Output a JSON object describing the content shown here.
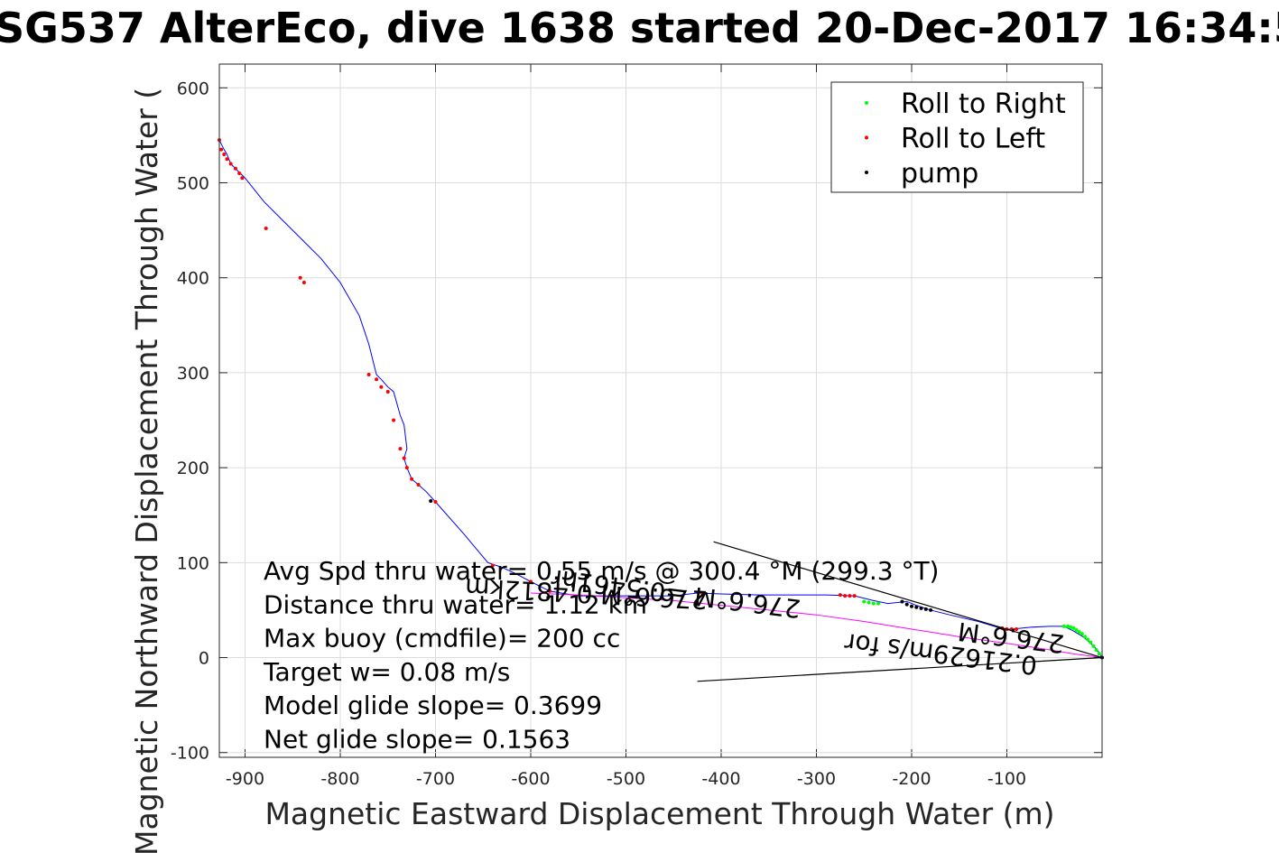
{
  "chart_data": {
    "type": "scatter",
    "title": "SG537 AlterEco, dive 1638 started 20-Dec-2017 16:34:5",
    "xlabel": "Magnetic Eastward Displacement Through Water (m)",
    "ylabel": "Magnetic Northward Displacement Through Water (",
    "xlim": [
      -927,
      0
    ],
    "ylim": [
      -105,
      625
    ],
    "xticks": [
      -900,
      -800,
      -700,
      -600,
      -500,
      -400,
      -300,
      -200,
      -100
    ],
    "yticks": [
      -100,
      0,
      100,
      200,
      300,
      400,
      500,
      600
    ],
    "xtick_labels": [
      "-900",
      "-800",
      "-700",
      "-600",
      "-500",
      "-400",
      "-300",
      "-200",
      "-100"
    ],
    "ytick_labels": [
      "-100",
      "0",
      "100",
      "200",
      "300",
      "400",
      "500",
      "600"
    ],
    "grid": true,
    "legend_position": "top-right",
    "legend": [
      {
        "label": "Roll to Right",
        "color": "#00ff00"
      },
      {
        "label": "Roll to Left",
        "color": "#ff0000"
      },
      {
        "label": "pump",
        "color": "#000000"
      }
    ],
    "series": [
      {
        "name": "",
        "type": "line",
        "color": "#0000ff",
        "x": [
          0,
          -5,
          -12,
          -20,
          -30,
          -40,
          -55,
          -75,
          -95,
          -100,
          -110,
          -130,
          -160,
          -180,
          -195,
          -205,
          -215,
          -225,
          -240,
          -260,
          -290,
          -320,
          -360,
          -400,
          -425,
          -450,
          -500,
          -550,
          -580,
          -600,
          -615,
          -630,
          -645,
          -670,
          -700,
          -710,
          -718,
          -725,
          -730,
          -733,
          -730,
          -733,
          -737,
          -744,
          -750,
          -757,
          -762,
          -770,
          -780,
          -800,
          -820,
          -840,
          -860,
          -880,
          -900,
          -905,
          -910,
          -915,
          -919,
          -922,
          -927
        ],
        "y": [
          0,
          8,
          15,
          22,
          28,
          33,
          33,
          32,
          30,
          30,
          32,
          38,
          45,
          50,
          55,
          59,
          58,
          57,
          60,
          65,
          66,
          66,
          66,
          67,
          68,
          65,
          65,
          65,
          70,
          80,
          88,
          95,
          100,
          130,
          164,
          175,
          182,
          188,
          200,
          210,
          220,
          245,
          255,
          280,
          285,
          293,
          298,
          330,
          360,
          395,
          420,
          440,
          460,
          480,
          505,
          510,
          515,
          520,
          530,
          535,
          545
        ]
      },
      {
        "name": "",
        "type": "line",
        "color": "#ff00ff",
        "x": [
          0,
          -30,
          -60,
          -100,
          -150,
          -200,
          -250,
          -300,
          -350,
          -400,
          -450,
          -500,
          -550,
          -600
        ],
        "y": [
          0,
          4,
          9,
          15,
          22,
          30,
          38,
          45,
          50,
          55,
          60,
          63,
          66,
          68
        ]
      },
      {
        "name": "Roll to Right",
        "type": "scatter",
        "color": "#00ff00",
        "x": [
          -3,
          -6,
          -9,
          -12,
          -15,
          -18,
          -21,
          -24,
          -27,
          -30,
          -33,
          -36,
          -40,
          -235,
          -240,
          -245,
          -250
        ],
        "y": [
          4,
          8,
          12,
          16,
          19,
          22,
          25,
          27,
          29,
          31,
          32,
          33,
          33,
          57,
          57,
          58,
          59
        ]
      },
      {
        "name": "Roll to Left",
        "type": "scatter",
        "color": "#ff0000",
        "x": [
          -90,
          -95,
          -100,
          -105,
          -260,
          -265,
          -270,
          -275,
          -420,
          -580,
          -600,
          -640,
          -700,
          -718,
          -725,
          -730,
          -733,
          -737,
          -744,
          -750,
          -757,
          -762,
          -770,
          -838,
          -842,
          -878,
          -903,
          -906,
          -910,
          -915,
          -919,
          -922,
          -925,
          -927
        ],
        "y": [
          30,
          30,
          30,
          31,
          65,
          65,
          65,
          66,
          68,
          70,
          80,
          97,
          164,
          182,
          188,
          200,
          210,
          220,
          250,
          280,
          285,
          293,
          298,
          395,
          400,
          452,
          505,
          510,
          515,
          520,
          525,
          530,
          535,
          545
        ]
      },
      {
        "name": "pump",
        "type": "scatter",
        "color": "#000000",
        "x": [
          0,
          -180,
          -185,
          -190,
          -195,
          -200,
          -205,
          -210,
          -705
        ],
        "y": [
          0,
          50,
          51,
          52,
          53,
          54,
          56,
          59,
          165
        ]
      },
      {
        "name": "",
        "type": "line",
        "color": "#000000",
        "x": [
          0,
          -408
        ],
        "y": [
          0,
          122
        ]
      },
      {
        "name": "",
        "type": "line",
        "color": "#000000",
        "x": [
          0,
          -425
        ],
        "y": [
          0,
          -25
        ]
      }
    ],
    "annotations": [
      "Avg Spd thru water=  0.55 m/s @ 300.4 °M (299.3 °T)",
      "Distance thru water= 1.12 km",
      "Max buoy (cmdfile)= 200 cc",
      "Target w= 0.08 m/s",
      "Model glide slope= 0.3699",
      "Net glide slope= 0.1563"
    ],
    "rotated_annotations": [
      "276.6°M 0.4812km",
      "276.6°M =0.5461hr",
      "0.21629m/s for",
      "276.6°M"
    ]
  }
}
